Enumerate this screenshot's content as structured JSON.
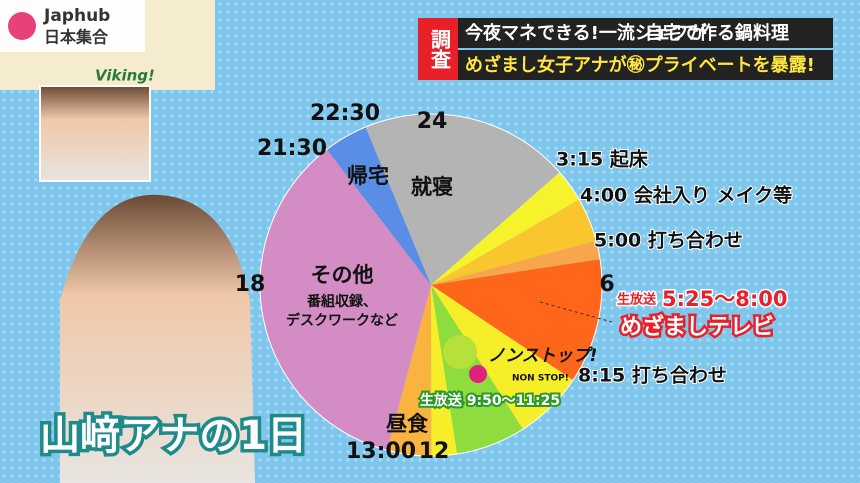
{
  "watermark": {
    "brand": "Japhub",
    "sub": "日本集合"
  },
  "program_logo": "Viking!",
  "banner": {
    "tag": "調査",
    "line1": "今夜マネできる!一流シェフが",
    "line1_highlight": "自宅で作る鍋料理",
    "line2": "めざまし女子アナが㊙プライベートを暴露!"
  },
  "chart_data": {
    "type": "pie",
    "categories": [
      "就寝",
      null,
      null,
      null,
      null,
      null,
      null,
      null,
      "昼食",
      "その他",
      "帰宅",
      null
    ],
    "values": [
      3.25,
      0.75,
      1,
      0.42,
      2.83,
      1.58,
      1.58,
      0.58,
      1,
      8.5,
      1,
      1.5
    ],
    "colors": [
      "#b4b4b4",
      "#f6f22c",
      "#f9c62e",
      "#f7a64c",
      "#ff6619",
      "#f6ee28",
      "#8fdc3e",
      "#f6ee28",
      "#f9b440",
      "#d38cc4",
      "#5a8ee6",
      "#b4b4b4"
    ],
    "clock_labels": [
      "24",
      "6",
      "12",
      "18"
    ],
    "time_labels": [
      "22:30",
      "21:30",
      "13:00"
    ],
    "outside_labels": [
      "3:15 起床",
      "4:00 会社入り メイク等",
      "5:00 打ち合わせ",
      "8:15 打ち合わせ"
    ],
    "other_detail": [
      "番組収録、",
      "デスクワークなど"
    ],
    "mezamashi": {
      "live": "生放送",
      "time": "5:25〜8:00",
      "show": "めざましテレビ"
    },
    "nonstop": {
      "title": "ノンストップ!",
      "subtitle": "NON STOP!",
      "live": "生放送 9:50〜11:25"
    }
  },
  "caption": "山﨑アナの1日"
}
